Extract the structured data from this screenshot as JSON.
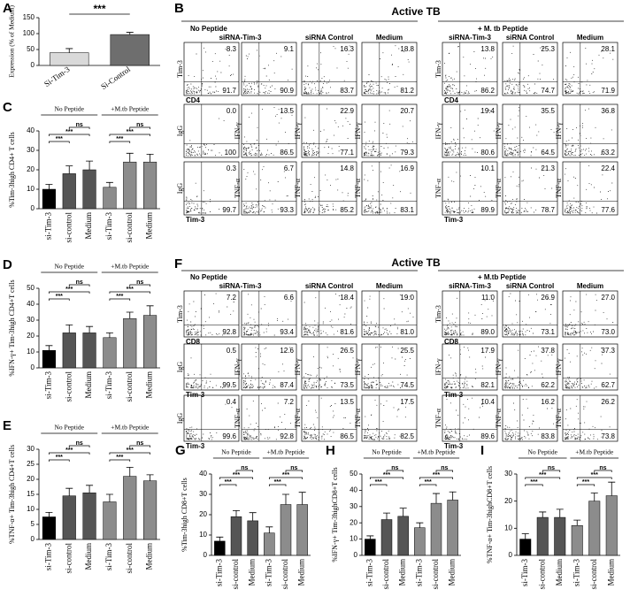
{
  "chart_data": [
    {
      "type": "bar",
      "letter": "A",
      "ylabel": "Expression (% of Medium)",
      "categories": [
        "Si-Tim-3",
        "Si-Control"
      ],
      "values": [
        40,
        97
      ],
      "errors": [
        13,
        7
      ],
      "colors": [
        "#d9d9d9",
        "#6e6e6e"
      ],
      "ylim": [
        0,
        150
      ],
      "yticks": [
        0,
        50,
        100,
        150
      ],
      "significance": "***"
    },
    {
      "type": "bar",
      "letter": "C",
      "ylabel": "%Tim-3high CD4+ T cells",
      "groups": [
        "No Peptide",
        "+M.tb Peptide"
      ],
      "significance": [
        [
          "***",
          "***",
          "ns"
        ],
        [
          "***",
          "***",
          "ns"
        ]
      ],
      "categories": [
        "si-Tim-3",
        "si-control",
        "Medium",
        "si-Tim-3",
        "si-control",
        "Medium"
      ],
      "values": [
        10,
        18,
        20,
        11,
        24,
        24
      ],
      "errors": [
        2.5,
        4,
        4.5,
        2.5,
        4.5,
        4
      ],
      "colors": [
        "#000000",
        "#555555",
        "#555555",
        "#8c8c8c",
        "#8c8c8c",
        "#8c8c8c"
      ],
      "ylim": [
        0,
        40
      ],
      "yticks": [
        0,
        10,
        20,
        30,
        40
      ]
    },
    {
      "type": "bar",
      "letter": "D",
      "ylabel": "%IFN-γ+ Tim-3high CD4+T cells",
      "groups": [
        "No Peptide",
        "+M.tb Peptide"
      ],
      "significance": [
        [
          "***",
          "***",
          "ns"
        ],
        [
          "***",
          "***",
          "ns"
        ]
      ],
      "categories": [
        "si-Tim-3",
        "si-control",
        "Medium",
        "si-Tim-3",
        "si-control",
        "Medium"
      ],
      "values": [
        11,
        22,
        22,
        19,
        31,
        33
      ],
      "errors": [
        3,
        5,
        4,
        3,
        4,
        6
      ],
      "colors": [
        "#000000",
        "#555555",
        "#555555",
        "#8c8c8c",
        "#8c8c8c",
        "#8c8c8c"
      ],
      "ylim": [
        0,
        50
      ],
      "yticks": [
        0,
        10,
        20,
        30,
        40,
        50
      ]
    },
    {
      "type": "bar",
      "letter": "E",
      "ylabel": "%TNF-α+ Tim-3high CD4+T cells",
      "groups": [
        "No Peptide",
        "+M.tb Peptide"
      ],
      "significance": [
        [
          "***",
          "***",
          "ns"
        ],
        [
          "***",
          "***",
          "ns"
        ]
      ],
      "categories": [
        "si-Tim-3",
        "si-control",
        "Medium",
        "si-Tim-3",
        "si-control",
        "Medium"
      ],
      "values": [
        7.5,
        14.5,
        15.5,
        12.5,
        21,
        19.5
      ],
      "errors": [
        1.5,
        2.5,
        2.5,
        2.5,
        3,
        2
      ],
      "colors": [
        "#000000",
        "#555555",
        "#555555",
        "#8c8c8c",
        "#8c8c8c",
        "#8c8c8c"
      ],
      "ylim": [
        0,
        30
      ],
      "yticks": [
        0,
        5,
        10,
        15,
        20,
        25,
        30
      ]
    },
    {
      "type": "bar",
      "letter": "G",
      "ylabel": "%Tim-3high CD8+T cells",
      "groups": [
        "No Peptide",
        "+M.tb Peptide"
      ],
      "significance": [
        [
          "***",
          "***",
          "ns"
        ],
        [
          "***",
          "***",
          "ns"
        ]
      ],
      "categories": [
        "si-Tim-3",
        "si-control",
        "Medium",
        "si-Tim-3",
        "si-control",
        "Medium"
      ],
      "values": [
        7,
        19,
        17,
        11,
        25,
        25
      ],
      "errors": [
        2,
        3,
        4,
        3,
        5,
        6
      ],
      "colors": [
        "#000000",
        "#555555",
        "#555555",
        "#8c8c8c",
        "#8c8c8c",
        "#8c8c8c"
      ],
      "ylim": [
        0,
        40
      ],
      "yticks": [
        0,
        10,
        20,
        30,
        40
      ]
    },
    {
      "type": "bar",
      "letter": "H",
      "ylabel": "%IFN-γ+ Tim-3highCD8+T cells",
      "groups": [
        "No Peptide",
        "+M.tb Peptide"
      ],
      "significance": [
        [
          "***",
          "***",
          "ns"
        ],
        [
          "***",
          "***",
          "ns"
        ]
      ],
      "categories": [
        "si-Tim-3",
        "si-control",
        "Medium",
        "si-Tim-3",
        "si-control",
        "Medium"
      ],
      "values": [
        10,
        22,
        24,
        17,
        32,
        34
      ],
      "errors": [
        2,
        4,
        5,
        3,
        6,
        5
      ],
      "colors": [
        "#000000",
        "#555555",
        "#555555",
        "#8c8c8c",
        "#8c8c8c",
        "#8c8c8c"
      ],
      "ylim": [
        0,
        50
      ],
      "yticks": [
        0,
        10,
        20,
        30,
        40,
        50
      ]
    },
    {
      "type": "bar",
      "letter": "I",
      "ylabel": "%TNF-α+ Tim-3highCD8+T cells",
      "groups": [
        "No Peptide",
        "+M.tb Peptide"
      ],
      "significance": [
        [
          "***",
          "***",
          "ns"
        ],
        [
          "***",
          "***",
          "ns"
        ]
      ],
      "categories": [
        "si-Tim-3",
        "si-control",
        "Medium",
        "si-Tim-3",
        "si-control",
        "Medium"
      ],
      "values": [
        6,
        14,
        14,
        11,
        20,
        22
      ],
      "errors": [
        2,
        2,
        3,
        2,
        3,
        5
      ],
      "colors": [
        "#000000",
        "#555555",
        "#555555",
        "#8c8c8c",
        "#8c8c8c",
        "#8c8c8c"
      ],
      "ylim": [
        0,
        30
      ],
      "yticks": [
        0,
        10,
        20,
        30
      ]
    }
  ],
  "flow_panels": [
    {
      "letter": "B",
      "title": "Active TB",
      "groups": [
        {
          "name": "No Peptide",
          "headers": [
            "siRNA-Tim-3",
            "siRNA Control",
            "Medium"
          ]
        },
        {
          "name": "+ M. tb Peptide",
          "headers": [
            "siRNA-Tim-3",
            "siRNA Control",
            "Medium"
          ]
        }
      ],
      "rows": [
        {
          "y_label": "Tim-3",
          "x_label": "CD4",
          "plots": [
            [
              "8.3",
              "91.7"
            ],
            [
              "9.1",
              "90.9"
            ],
            [
              "16.3",
              "83.7"
            ],
            [
              "18.8",
              "81.2"
            ],
            [
              "13.8",
              "86.2"
            ],
            [
              "25.3",
              "74.7"
            ],
            [
              "28.1",
              "71.9"
            ]
          ]
        },
        {
          "isotype_label": "IgG",
          "y_label": "IFN-γ",
          "plots": [
            [
              "0.0",
              "100"
            ],
            [
              "13.5",
              "86.5"
            ],
            [
              "22.9",
              "77.1"
            ],
            [
              "20.7",
              "79.3"
            ],
            [
              "19.4",
              "80.6"
            ],
            [
              "35.5",
              "64.5"
            ],
            [
              "36.8",
              "63.2"
            ]
          ]
        },
        {
          "isotype_label": "IgG",
          "y_label": "TNF-α",
          "x_label": "Tim-3",
          "plots": [
            [
              "0.3",
              "99.7"
            ],
            [
              "6.7",
              "93.3"
            ],
            [
              "14.8",
              "85.2"
            ],
            [
              "16.9",
              "83.1"
            ],
            [
              "10.1",
              "89.9"
            ],
            [
              "21.3",
              "78.7"
            ],
            [
              "22.4",
              "77.6"
            ]
          ]
        }
      ]
    },
    {
      "letter": "F",
      "title": "Active TB",
      "groups": [
        {
          "name": "No Peptide",
          "headers": [
            "siRNA-Tim-3",
            "siRNA Control",
            "Medium"
          ]
        },
        {
          "name": "+ M.tb Peptide",
          "headers": [
            "siRNA-Tim-3",
            "siRNA Control",
            "Medium"
          ]
        }
      ],
      "rows": [
        {
          "y_label": "Tim-3",
          "x_label": "CD8",
          "plots": [
            [
              "7.2",
              "92.8"
            ],
            [
              "6.6",
              "93.4"
            ],
            [
              "18.4",
              "81.6"
            ],
            [
              "19.0",
              "81.0"
            ],
            [
              "11.0",
              "89.0"
            ],
            [
              "26.9",
              "73.1"
            ],
            [
              "27.0",
              "73.0"
            ]
          ]
        },
        {
          "isotype_label": "IgG",
          "y_label": "IFN-γ",
          "x_label": "Tim-3",
          "plots": [
            [
              "0.5",
              "99.5"
            ],
            [
              "12.6",
              "87.4"
            ],
            [
              "26.5",
              "73.5"
            ],
            [
              "25.5",
              "74.5"
            ],
            [
              "17.9",
              "82.1"
            ],
            [
              "37.8",
              "62.2"
            ],
            [
              "37.3",
              "62.7"
            ]
          ]
        },
        {
          "isotype_label": "IgG",
          "y_label": "TNF-α",
          "x_label": "Tim-3",
          "plots": [
            [
              "0.4",
              "99.6"
            ],
            [
              "7.2",
              "92.8"
            ],
            [
              "13.5",
              "86.5"
            ],
            [
              "17.5",
              "82.5"
            ],
            [
              "10.4",
              "89.6"
            ],
            [
              "16.2",
              "83.8"
            ],
            [
              "26.2",
              "73.8"
            ]
          ]
        }
      ]
    }
  ]
}
